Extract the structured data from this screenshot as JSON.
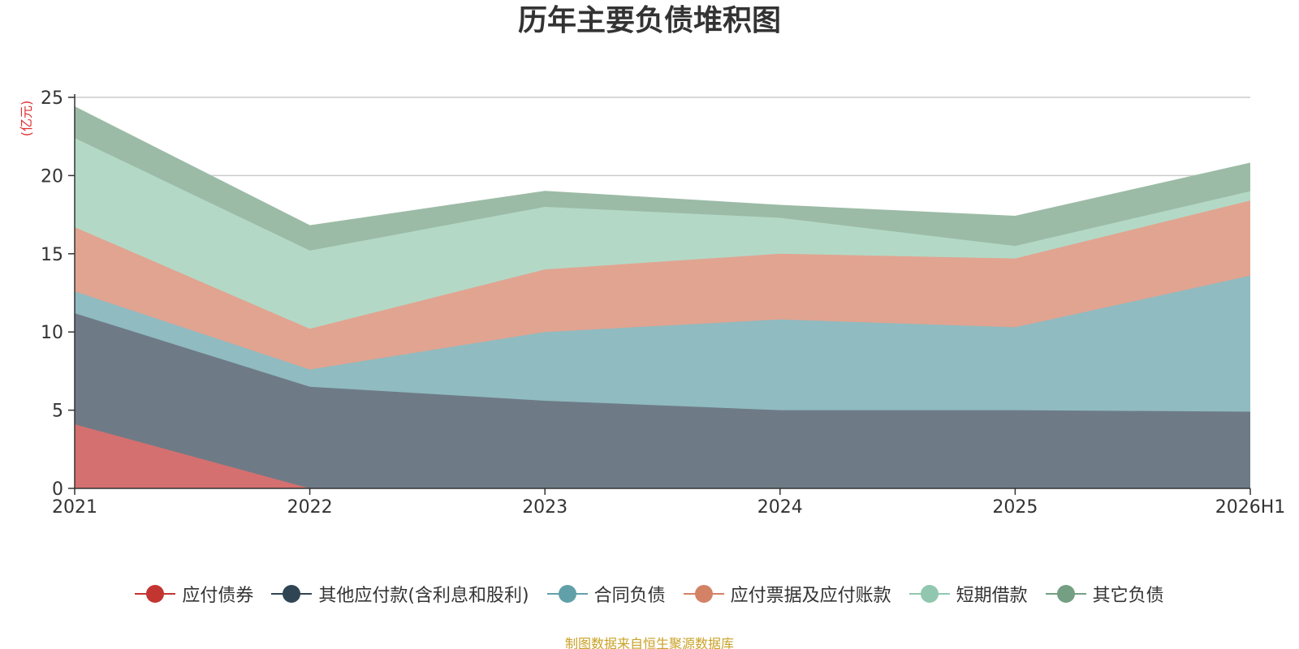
{
  "title": "历年主要负债堆积图",
  "source_note": "制图数据来自恒生聚源数据库",
  "colors": {
    "grid": "#cccccc",
    "axis": "#333333",
    "ylabel": "#e03030",
    "text": "#333333"
  },
  "chart_data": {
    "type": "area",
    "stacked": true,
    "title": "历年主要负债堆积图",
    "xlabel": "",
    "ylabel": "(亿元)",
    "categories": [
      "2021",
      "2022",
      "2023",
      "2024",
      "2025",
      "2026H1"
    ],
    "ylim": [
      0,
      25
    ],
    "yticks": [
      0,
      5,
      10,
      15,
      20,
      25
    ],
    "grid": true,
    "legend_position": "bottom",
    "series": [
      {
        "name": "应付债券",
        "color": "#c23531",
        "fill": "#d4706f",
        "values": [
          4.1,
          0,
          0,
          0,
          0,
          0
        ]
      },
      {
        "name": "其他应付款(含利息和股利)",
        "color": "#2f4554",
        "fill": "#6e7b86",
        "values": [
          7.1,
          6.5,
          5.6,
          5.0,
          5.0,
          4.9
        ]
      },
      {
        "name": "合同负债",
        "color": "#61a0a8",
        "fill": "#90bbc0",
        "values": [
          1.4,
          1.1,
          4.4,
          5.8,
          5.3,
          8.7
        ]
      },
      {
        "name": "应付票据及应付账款",
        "color": "#d48265",
        "fill": "#e1a491",
        "values": [
          4.1,
          2.6,
          4.0,
          4.2,
          4.4,
          4.8
        ]
      },
      {
        "name": "短期借款",
        "color": "#91c7ae",
        "fill": "#b3d9c6",
        "values": [
          5.7,
          5.0,
          4.0,
          2.3,
          0.8,
          0.6
        ]
      },
      {
        "name": "其它负债",
        "color": "#749f83",
        "fill": "#9cbba6",
        "values": [
          2.0,
          1.6,
          1.0,
          0.8,
          1.9,
          1.8
        ]
      }
    ]
  }
}
